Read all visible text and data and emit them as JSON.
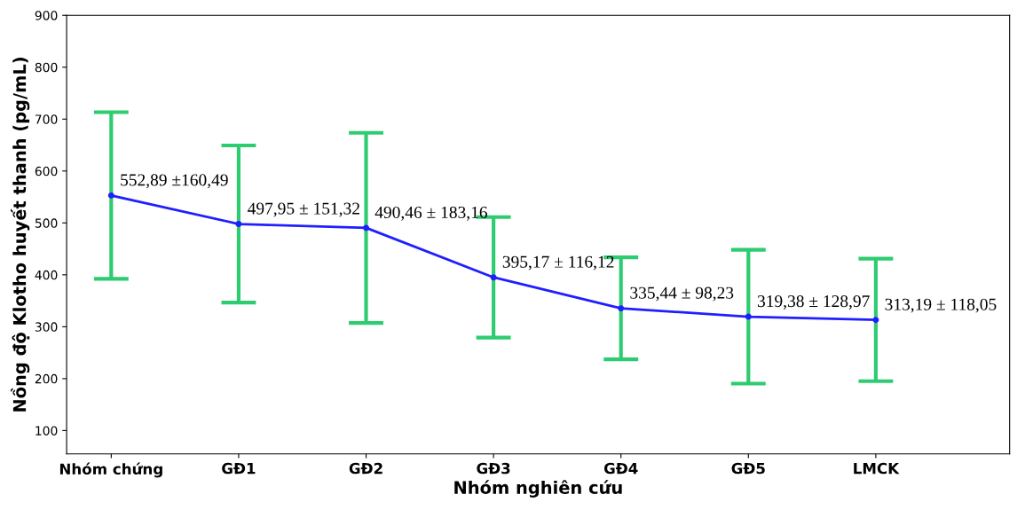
{
  "chart_data": {
    "type": "line",
    "xlabel": "Nhóm nghiên cứu",
    "ylabel": "Nồng độ Klotho huyết thanh (pg/mL)",
    "categories": [
      "Nhóm chứng",
      "GĐ1",
      "GĐ2",
      "GĐ3",
      "GĐ4",
      "GĐ5",
      "LMCK"
    ],
    "series": [
      {
        "color": "#1f1fff",
        "values": [
          552.89,
          497.95,
          490.46,
          395.17,
          335.44,
          319.38,
          313.19
        ],
        "errors": [
          160.49,
          151.32,
          183.16,
          116.12,
          98.23,
          128.97,
          118.05
        ],
        "value_labels": [
          "552,89 ±160,49",
          "497,95 ± 151,32",
          "490,46 ± 183,16",
          "395,17 ± 116,12",
          "335,44 ± 98,23",
          "319,38 ± 128,97",
          "313,19 ± 118,05"
        ]
      }
    ],
    "ylim": [
      55,
      900
    ],
    "yticks": [
      100,
      200,
      300,
      400,
      500,
      600,
      700,
      800,
      900
    ],
    "marker": "circle",
    "line_style": "solid",
    "grid": false,
    "legend": false
  }
}
